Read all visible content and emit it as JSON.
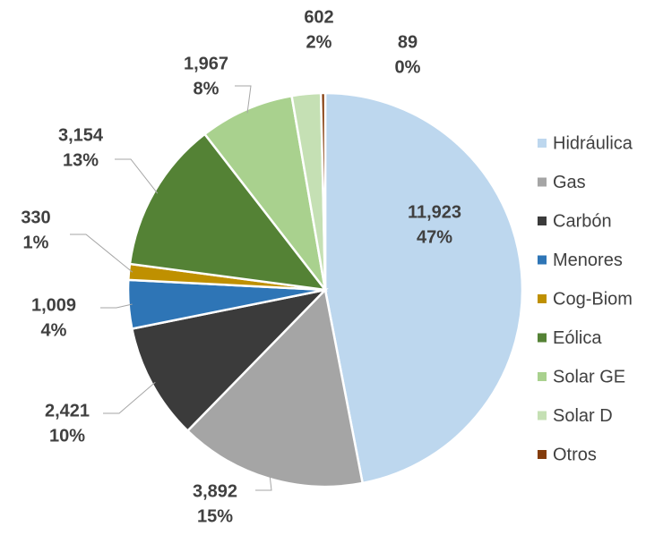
{
  "chart_data": {
    "type": "pie",
    "categories": [
      "Hidráulica",
      "Gas",
      "Carbón",
      "Menores",
      "Cog-Biom",
      "Eólica",
      "Solar GE",
      "Solar D",
      "Otros"
    ],
    "values": [
      11923,
      3892,
      2421,
      1009,
      330,
      3154,
      1967,
      602,
      89
    ],
    "value_labels": [
      "11,923",
      "3,892",
      "2,421",
      "1,009",
      "330",
      "3,154",
      "1,967",
      "602",
      "89"
    ],
    "percents": [
      47,
      15,
      10,
      4,
      1,
      13,
      8,
      2,
      0
    ],
    "percent_labels": [
      "47%",
      "15%",
      "10%",
      "4%",
      "1%",
      "13%",
      "8%",
      "2%",
      "0%"
    ],
    "colors": [
      "#bdd7ee",
      "#a5a5a5",
      "#3b3b3b",
      "#2e75b6",
      "#bf9000",
      "#548235",
      "#a9d18e",
      "#c5e0b4",
      "#843c0c"
    ],
    "legend": "right"
  }
}
